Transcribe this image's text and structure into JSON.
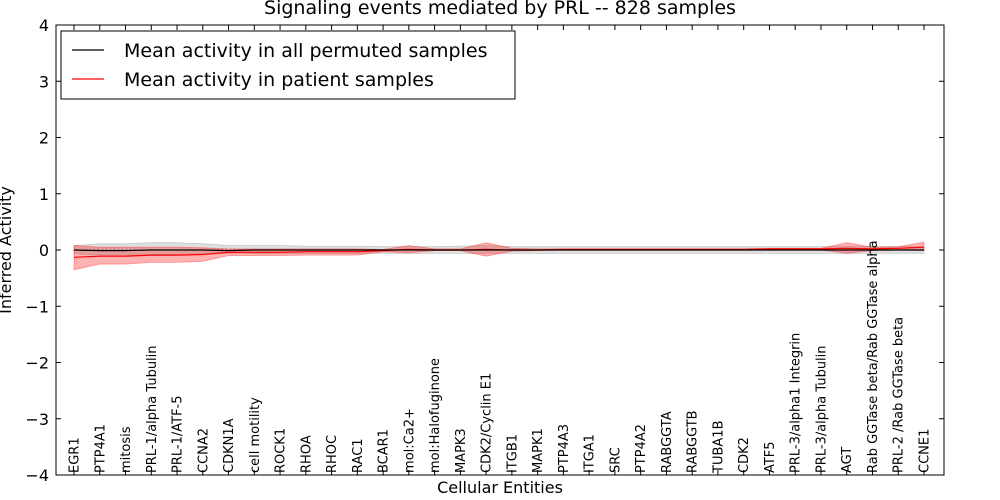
{
  "chart_data": {
    "type": "line",
    "title": "Signaling events mediated by PRL -- 828 samples",
    "xlabel": "Cellular Entities",
    "ylabel": "Inferred Activity",
    "ylim": [
      -4,
      4
    ],
    "yticks": [
      4,
      3,
      2,
      1,
      0,
      -1,
      -2,
      -3,
      -4
    ],
    "ytick_labels": [
      "4",
      "3",
      "2",
      "1",
      "0",
      "−1",
      "−2",
      "−3",
      "−4"
    ],
    "legend_position": "top-left",
    "categories": [
      "EGR1",
      "PTP4A1",
      "mitosis",
      "PRL-1/alpha Tubulin",
      "PRL-1/ATF-5",
      "CCNA2",
      "CDKN1A",
      "cell motility",
      "ROCK1",
      "RHOA",
      "RHOC",
      "RAC1",
      "BCAR1",
      "mol:Ca2+",
      "mol:Halofuginone",
      "MAPK3",
      "CDK2/Cyclin E1",
      "ITGB1",
      "MAPK1",
      "PTP4A3",
      "ITGA1",
      "SRC",
      "PTP4A2",
      "RABGGTA",
      "RABGGTB",
      "TUBA1B",
      "CDK2",
      "ATF5",
      "PRL-3/alpha1 Integrin",
      "PRL-3/alpha Tubulin",
      "AGT",
      "Rab GGTase beta/Rab GGTase alpha",
      "PRL-2 /Rab GGTase beta",
      "CCNE1"
    ],
    "series": [
      {
        "name": "Mean activity in all permuted samples",
        "color": "#000000",
        "band_color": "#808080",
        "values": [
          0.0,
          -0.01,
          -0.01,
          0.0,
          0.0,
          0.0,
          -0.01,
          0.0,
          0.0,
          0.0,
          0.0,
          0.0,
          0.0,
          0.0,
          0.0,
          0.0,
          0.0,
          0.0,
          0.0,
          0.0,
          0.0,
          0.0,
          0.0,
          0.0,
          0.0,
          0.0,
          0.0,
          0.0,
          0.0,
          0.0,
          0.0,
          0.0,
          0.0,
          0.0
        ],
        "lower": [
          -0.07,
          -0.09,
          -0.09,
          -0.08,
          -0.08,
          -0.07,
          -0.06,
          -0.06,
          -0.06,
          -0.06,
          -0.06,
          -0.06,
          -0.06,
          -0.06,
          -0.06,
          -0.06,
          -0.06,
          -0.06,
          -0.06,
          -0.06,
          -0.06,
          -0.06,
          -0.06,
          -0.06,
          -0.06,
          -0.06,
          -0.06,
          -0.06,
          -0.06,
          -0.06,
          -0.06,
          -0.06,
          -0.06,
          -0.06
        ],
        "upper": [
          0.08,
          0.11,
          0.11,
          0.13,
          0.13,
          0.11,
          0.08,
          0.08,
          0.08,
          0.07,
          0.07,
          0.07,
          0.06,
          0.06,
          0.06,
          0.07,
          0.08,
          0.06,
          0.06,
          0.06,
          0.06,
          0.06,
          0.06,
          0.06,
          0.06,
          0.06,
          0.06,
          0.06,
          0.06,
          0.06,
          0.06,
          0.06,
          0.06,
          0.06
        ]
      },
      {
        "name": "Mean activity in patient samples",
        "color": "#ff0000",
        "band_color": "#ff0000",
        "values": [
          -0.13,
          -0.11,
          -0.11,
          -0.09,
          -0.09,
          -0.08,
          -0.04,
          -0.04,
          -0.04,
          -0.03,
          -0.03,
          -0.03,
          -0.01,
          0.01,
          0.0,
          0.0,
          0.01,
          0.0,
          0.0,
          0.01,
          0.01,
          0.01,
          0.01,
          0.01,
          0.01,
          0.01,
          0.01,
          0.02,
          0.02,
          0.02,
          0.03,
          0.02,
          0.03,
          0.05
        ],
        "lower": [
          -0.35,
          -0.25,
          -0.25,
          -0.22,
          -0.22,
          -0.2,
          -0.1,
          -0.1,
          -0.1,
          -0.09,
          -0.09,
          -0.09,
          -0.03,
          -0.05,
          -0.01,
          -0.01,
          -0.11,
          -0.02,
          -0.01,
          0.0,
          0.0,
          0.0,
          0.0,
          0.0,
          0.0,
          0.0,
          0.0,
          0.0,
          0.0,
          0.0,
          -0.06,
          -0.01,
          0.0,
          -0.01
        ],
        "upper": [
          0.08,
          0.05,
          0.05,
          0.05,
          0.05,
          0.04,
          0.02,
          0.02,
          0.02,
          0.02,
          0.02,
          0.02,
          0.01,
          0.08,
          0.02,
          0.02,
          0.13,
          0.03,
          0.02,
          0.02,
          0.02,
          0.02,
          0.02,
          0.02,
          0.02,
          0.02,
          0.02,
          0.03,
          0.03,
          0.03,
          0.13,
          0.05,
          0.06,
          0.14
        ]
      }
    ]
  }
}
